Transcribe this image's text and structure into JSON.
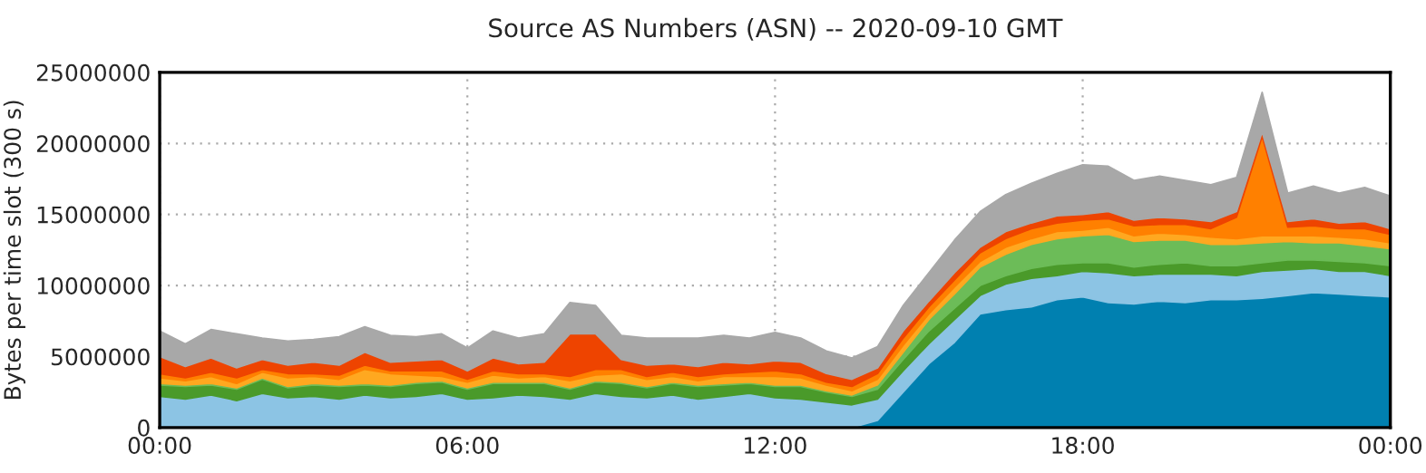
{
  "chart_data": {
    "type": "area",
    "stacked": true,
    "title": "Source AS Numbers (ASN) -- 2020-09-10 GMT",
    "ylabel": "Bytes per time slot (300 s)",
    "x": [
      0,
      0.5,
      1,
      1.5,
      2,
      2.5,
      3,
      3.5,
      4,
      4.5,
      5,
      5.5,
      6,
      6.5,
      7,
      7.5,
      8,
      8.5,
      9,
      9.5,
      10,
      10.5,
      11,
      11.5,
      12,
      12.5,
      13,
      13.5,
      14,
      14.5,
      15,
      15.5,
      16,
      16.5,
      17,
      17.5,
      18,
      18.5,
      19,
      19.5,
      20,
      20.5,
      21,
      21.5,
      22,
      22.5,
      23,
      23.5,
      24
    ],
    "xlim": [
      0,
      24
    ],
    "xticks": [
      {
        "value": 0,
        "label": "00:00"
      },
      {
        "value": 6,
        "label": "06:00"
      },
      {
        "value": 12,
        "label": "12:00"
      },
      {
        "value": 18,
        "label": "18:00"
      },
      {
        "value": 24,
        "label": "00:00"
      }
    ],
    "ylim": [
      0,
      25000000
    ],
    "yticks": [
      0,
      5000000,
      10000000,
      15000000,
      20000000,
      25000000
    ],
    "grid": true,
    "series": [
      {
        "color": "#0080b0",
        "values": [
          0,
          0,
          0,
          0,
          0,
          0,
          0,
          0,
          0,
          0,
          0,
          0,
          0,
          0,
          0,
          0,
          0,
          0,
          0,
          0,
          0,
          0,
          0,
          0,
          0,
          0,
          0,
          0,
          500000,
          2500000,
          4500000,
          6000000,
          8000000,
          8300000,
          8500000,
          9000000,
          9200000,
          8800000,
          8700000,
          8900000,
          8800000,
          9000000,
          9000000,
          9100000,
          9300000,
          9500000,
          9400000,
          9300000,
          9200000
        ]
      },
      {
        "color": "#8cc4e4",
        "values": [
          2200000,
          2000000,
          2300000,
          1900000,
          2400000,
          2100000,
          2200000,
          2000000,
          2300000,
          2100000,
          2200000,
          2400000,
          2000000,
          2100000,
          2300000,
          2200000,
          2000000,
          2400000,
          2200000,
          2100000,
          2300000,
          2000000,
          2200000,
          2400000,
          2100000,
          2000000,
          1800000,
          1600000,
          1500000,
          1500000,
          1400000,
          1600000,
          1300000,
          1800000,
          2000000,
          1700000,
          1800000,
          2100000,
          2000000,
          1900000,
          2000000,
          1800000,
          1700000,
          1900000,
          1800000,
          1700000,
          1600000,
          1700000,
          1500000
        ]
      },
      {
        "color": "#4a9a2a",
        "values": [
          800000,
          900000,
          700000,
          800000,
          1000000,
          700000,
          800000,
          900000,
          700000,
          800000,
          900000,
          800000,
          700000,
          1000000,
          800000,
          900000,
          700000,
          800000,
          900000,
          700000,
          800000,
          900000,
          800000,
          700000,
          800000,
          900000,
          700000,
          600000,
          700000,
          800000,
          900000,
          800000,
          700000,
          600000,
          700000,
          800000,
          600000,
          700000,
          600000,
          700000,
          800000,
          600000,
          700000,
          600000,
          700000,
          600000,
          700000,
          600000,
          700000
        ]
      },
      {
        "color": "#6cbc58",
        "values": [
          100000,
          100000,
          100000,
          100000,
          100000,
          100000,
          100000,
          100000,
          100000,
          100000,
          100000,
          100000,
          100000,
          100000,
          100000,
          100000,
          100000,
          100000,
          100000,
          100000,
          100000,
          100000,
          100000,
          100000,
          100000,
          100000,
          100000,
          100000,
          300000,
          500000,
          800000,
          1000000,
          1300000,
          1500000,
          1700000,
          1800000,
          1900000,
          2000000,
          1800000,
          1700000,
          1600000,
          1500000,
          1500000,
          1400000,
          1300000,
          1200000,
          1300000,
          1200000,
          1200000
        ]
      },
      {
        "color": "#ffa820",
        "values": [
          400000,
          300000,
          500000,
          300000,
          400000,
          600000,
          500000,
          400000,
          1000000,
          800000,
          500000,
          300000,
          400000,
          500000,
          300000,
          400000,
          500000,
          400000,
          600000,
          500000,
          400000,
          300000,
          500000,
          400000,
          600000,
          500000,
          400000,
          300000,
          400000,
          500000,
          400000,
          500000,
          400000,
          500000,
          400000,
          500000,
          400000,
          500000,
          400000,
          500000,
          400000,
          500000,
          400000,
          500000,
          400000,
          500000,
          400000,
          500000,
          400000
        ]
      },
      {
        "color": "#ff8000",
        "values": [
          300000,
          200000,
          300000,
          400000,
          200000,
          300000,
          200000,
          300000,
          300000,
          200000,
          300000,
          400000,
          200000,
          300000,
          300000,
          200000,
          300000,
          400000,
          300000,
          200000,
          300000,
          300000,
          200000,
          300000,
          400000,
          300000,
          200000,
          300000,
          400000,
          500000,
          500000,
          500000,
          600000,
          600000,
          700000,
          600000,
          700000,
          600000,
          700000,
          600000,
          700000,
          600000,
          1500000,
          7000000,
          600000,
          700000,
          600000,
          700000,
          600000
        ]
      },
      {
        "color": "#ee4400",
        "values": [
          1200000,
          800000,
          1000000,
          700000,
          700000,
          600000,
          800000,
          700000,
          900000,
          600000,
          700000,
          800000,
          600000,
          900000,
          700000,
          800000,
          3000000,
          2500000,
          700000,
          800000,
          600000,
          700000,
          800000,
          600000,
          700000,
          800000,
          600000,
          500000,
          400000,
          500000,
          400000,
          500000,
          400000,
          500000,
          400000,
          500000,
          400000,
          500000,
          400000,
          500000,
          400000,
          500000,
          400000,
          300000,
          400000,
          500000,
          400000,
          500000,
          400000
        ]
      },
      {
        "color": "#a8a8a8",
        "values": [
          1800000,
          1600000,
          2000000,
          2400000,
          1500000,
          1700000,
          1600000,
          2000000,
          1800000,
          1900000,
          1700000,
          1800000,
          1600000,
          1900000,
          1800000,
          2000000,
          2200000,
          2000000,
          1700000,
          1900000,
          1800000,
          2000000,
          1900000,
          1800000,
          2000000,
          1700000,
          1600000,
          1500000,
          1500000,
          1800000,
          2000000,
          2300000,
          2500000,
          2600000,
          2800000,
          3000000,
          3500000,
          3200000,
          2800000,
          2900000,
          2700000,
          2600000,
          2400000,
          2800000,
          2000000,
          2300000,
          2100000,
          2400000,
          2300000
        ]
      }
    ]
  }
}
